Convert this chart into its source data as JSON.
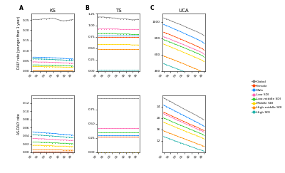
{
  "years": [
    1990,
    1992,
    1994,
    1996,
    1998,
    2000,
    2002,
    2004,
    2006,
    2008,
    2010,
    2012,
    2014,
    2016,
    2018,
    2019
  ],
  "colors": {
    "Global": "#808080",
    "Female": "#ff4500",
    "Male": "#1e90ff",
    "Low SDI": "#ff69b4",
    "Low-middle SDI": "#32cd32",
    "Middle SDI": "#ffd700",
    "High-middle SDI": "#ff8c00",
    "High SDI": "#20b2aa"
  },
  "legend_labels": [
    "Global",
    "Female",
    "Male",
    "Low SDI",
    "Low-middle SDI",
    "Middle SDI",
    "High-middle SDI",
    "High SDI"
  ],
  "panel_titles": [
    "KS",
    "TS",
    "UCA"
  ],
  "panel_labels": [
    "A",
    "B",
    "C"
  ],
  "KS_DALY": {
    "Global": [
      0.252,
      0.253,
      0.252,
      0.254,
      0.256,
      0.255,
      0.258,
      0.259,
      0.257,
      0.252,
      0.248,
      0.246,
      0.247,
      0.249,
      0.251,
      0.253
    ],
    "Male": [
      0.068,
      0.068,
      0.067,
      0.067,
      0.067,
      0.066,
      0.066,
      0.065,
      0.065,
      0.064,
      0.063,
      0.062,
      0.061,
      0.06,
      0.06,
      0.06
    ],
    "High SDI": [
      0.06,
      0.06,
      0.059,
      0.059,
      0.058,
      0.058,
      0.057,
      0.057,
      0.056,
      0.055,
      0.055,
      0.054,
      0.053,
      0.053,
      0.053,
      0.053
    ],
    "Low SDI": [
      0.045,
      0.045,
      0.044,
      0.044,
      0.044,
      0.044,
      0.043,
      0.043,
      0.042,
      0.042,
      0.041,
      0.04,
      0.04,
      0.039,
      0.038,
      0.038
    ],
    "Low-middle SDI": [
      0.03,
      0.03,
      0.03,
      0.029,
      0.029,
      0.029,
      0.029,
      0.028,
      0.028,
      0.027,
      0.027,
      0.027,
      0.026,
      0.026,
      0.025,
      0.025
    ],
    "Middle SDI": [
      0.022,
      0.022,
      0.022,
      0.022,
      0.021,
      0.021,
      0.021,
      0.021,
      0.02,
      0.02,
      0.02,
      0.019,
      0.019,
      0.019,
      0.019,
      0.019
    ],
    "High-middle SDI": [
      0.002,
      0.002,
      0.002,
      0.002,
      0.002,
      0.002,
      0.002,
      0.002,
      0.002,
      0.002,
      0.002,
      0.002,
      0.002,
      0.002,
      0.002,
      0.002
    ],
    "Female": [
      0.001,
      0.001,
      0.001,
      0.001,
      0.001,
      0.001,
      0.001,
      0.001,
      0.001,
      0.001,
      0.001,
      0.001,
      0.001,
      0.001,
      0.001,
      0.001
    ]
  },
  "KS_ASDALY": {
    "Global": [
      0.132,
      0.132,
      0.132,
      0.132,
      0.132,
      0.132,
      0.132,
      0.132,
      0.132,
      0.132,
      0.132,
      0.132,
      0.132,
      0.132,
      0.132,
      0.132
    ],
    "Male": [
      0.05,
      0.049,
      0.049,
      0.048,
      0.048,
      0.047,
      0.047,
      0.046,
      0.046,
      0.045,
      0.044,
      0.044,
      0.043,
      0.043,
      0.042,
      0.042
    ],
    "High SDI": [
      0.043,
      0.043,
      0.042,
      0.042,
      0.041,
      0.041,
      0.04,
      0.04,
      0.039,
      0.039,
      0.038,
      0.038,
      0.037,
      0.037,
      0.036,
      0.036
    ],
    "Low SDI": [
      0.034,
      0.034,
      0.033,
      0.033,
      0.033,
      0.032,
      0.032,
      0.032,
      0.031,
      0.031,
      0.03,
      0.03,
      0.03,
      0.029,
      0.029,
      0.029
    ],
    "Low-middle SDI": [
      0.025,
      0.025,
      0.025,
      0.024,
      0.024,
      0.024,
      0.024,
      0.023,
      0.023,
      0.023,
      0.022,
      0.022,
      0.022,
      0.021,
      0.021,
      0.021
    ],
    "Middle SDI": [
      0.017,
      0.017,
      0.017,
      0.017,
      0.016,
      0.016,
      0.016,
      0.016,
      0.015,
      0.015,
      0.015,
      0.015,
      0.015,
      0.014,
      0.014,
      0.014
    ],
    "High-middle SDI": [
      0.006,
      0.006,
      0.006,
      0.006,
      0.006,
      0.006,
      0.006,
      0.006,
      0.006,
      0.006,
      0.006,
      0.005,
      0.005,
      0.005,
      0.005,
      0.005
    ],
    "Female": [
      0.001,
      0.001,
      0.001,
      0.001,
      0.001,
      0.001,
      0.001,
      0.001,
      0.001,
      0.001,
      0.001,
      0.001,
      0.001,
      0.001,
      0.001,
      0.001
    ]
  },
  "TS_DALY": {
    "Global": [
      1.18,
      1.18,
      1.18,
      1.17,
      1.17,
      1.16,
      1.16,
      1.15,
      1.14,
      1.14,
      1.14,
      1.13,
      1.12,
      1.12,
      1.13,
      1.13
    ],
    "Low SDI": [
      0.92,
      0.92,
      0.92,
      0.92,
      0.92,
      0.92,
      0.92,
      0.92,
      0.91,
      0.91,
      0.91,
      0.91,
      0.91,
      0.91,
      0.91,
      0.91
    ],
    "Low-middle SDI": [
      0.82,
      0.82,
      0.82,
      0.82,
      0.82,
      0.82,
      0.82,
      0.81,
      0.81,
      0.81,
      0.81,
      0.81,
      0.8,
      0.8,
      0.8,
      0.8
    ],
    "Male": [
      0.78,
      0.78,
      0.78,
      0.78,
      0.78,
      0.78,
      0.78,
      0.78,
      0.78,
      0.78,
      0.78,
      0.78,
      0.78,
      0.78,
      0.78,
      0.78
    ],
    "Female": [
      0.75,
      0.75,
      0.75,
      0.75,
      0.75,
      0.75,
      0.75,
      0.75,
      0.75,
      0.75,
      0.75,
      0.75,
      0.75,
      0.75,
      0.75,
      0.75
    ],
    "Middle SDI": [
      0.58,
      0.58,
      0.58,
      0.58,
      0.58,
      0.58,
      0.58,
      0.58,
      0.58,
      0.58,
      0.58,
      0.58,
      0.57,
      0.57,
      0.57,
      0.57
    ],
    "High-middle SDI": [
      0.48,
      0.48,
      0.48,
      0.48,
      0.48,
      0.48,
      0.48,
      0.48,
      0.48,
      0.48,
      0.48,
      0.48,
      0.48,
      0.48,
      0.48,
      0.48
    ],
    "High SDI": [
      0.02,
      0.02,
      0.02,
      0.02,
      0.02,
      0.02,
      0.02,
      0.02,
      0.02,
      0.02,
      0.02,
      0.02,
      0.02,
      0.02,
      0.02,
      0.02
    ]
  },
  "TS_ASDALY": {
    "Global": [
      0.95,
      0.95,
      0.95,
      0.95,
      0.95,
      0.95,
      0.95,
      0.95,
      0.95,
      0.95,
      0.95,
      0.95,
      0.95,
      0.95,
      0.95,
      0.95
    ],
    "Low SDI": [
      0.42,
      0.42,
      0.42,
      0.42,
      0.42,
      0.42,
      0.42,
      0.42,
      0.42,
      0.42,
      0.42,
      0.42,
      0.42,
      0.42,
      0.42,
      0.42
    ],
    "Low-middle SDI": [
      0.35,
      0.35,
      0.35,
      0.35,
      0.35,
      0.35,
      0.35,
      0.35,
      0.35,
      0.35,
      0.35,
      0.35,
      0.35,
      0.35,
      0.35,
      0.35
    ],
    "Male": [
      0.3,
      0.3,
      0.3,
      0.3,
      0.3,
      0.3,
      0.3,
      0.3,
      0.3,
      0.3,
      0.3,
      0.3,
      0.3,
      0.3,
      0.3,
      0.3
    ],
    "Female": [
      0.27,
      0.27,
      0.27,
      0.27,
      0.27,
      0.27,
      0.27,
      0.27,
      0.27,
      0.27,
      0.27,
      0.27,
      0.27,
      0.27,
      0.27,
      0.27
    ],
    "Middle SDI": [
      0.001,
      0.001,
      0.001,
      0.001,
      0.001,
      0.001,
      0.001,
      0.001,
      0.001,
      0.001,
      0.001,
      0.001,
      0.001,
      0.001,
      0.001,
      0.001
    ],
    "High-middle SDI": [
      0.001,
      0.001,
      0.001,
      0.001,
      0.001,
      0.001,
      0.001,
      0.001,
      0.001,
      0.001,
      0.001,
      0.001,
      0.001,
      0.001,
      0.001,
      0.001
    ],
    "High SDI": [
      0.001,
      0.001,
      0.001,
      0.001,
      0.001,
      0.001,
      0.001,
      0.001,
      0.001,
      0.001,
      0.001,
      0.001,
      0.001,
      0.001,
      0.001,
      0.001
    ]
  },
  "UCA_DALY": {
    "Global": [
      1050,
      1038,
      1025,
      1010,
      996,
      982,
      970,
      955,
      940,
      925,
      910,
      896,
      882,
      865,
      848,
      835
    ],
    "Male": [
      970,
      957,
      943,
      928,
      913,
      899,
      884,
      868,
      853,
      837,
      822,
      807,
      792,
      774,
      757,
      742
    ],
    "Female": [
      875,
      863,
      850,
      836,
      821,
      808,
      794,
      779,
      764,
      749,
      735,
      720,
      705,
      689,
      673,
      658
    ],
    "Low SDI": [
      820,
      808,
      795,
      781,
      767,
      754,
      740,
      726,
      712,
      697,
      683,
      669,
      655,
      639,
      623,
      609
    ],
    "Low-middle SDI": [
      785,
      772,
      759,
      746,
      731,
      718,
      705,
      690,
      676,
      662,
      648,
      634,
      620,
      604,
      588,
      575
    ],
    "Middle SDI": [
      730,
      717,
      703,
      689,
      675,
      661,
      647,
      632,
      618,
      603,
      589,
      575,
      560,
      545,
      530,
      516
    ],
    "High-middle SDI": [
      585,
      572,
      559,
      546,
      533,
      519,
      506,
      492,
      478,
      463,
      449,
      435,
      421,
      405,
      390,
      377
    ],
    "High SDI": [
      490,
      477,
      464,
      451,
      438,
      425,
      412,
      399,
      385,
      372,
      358,
      344,
      331,
      317,
      303,
      293
    ]
  },
  "UCA_ASDALY": {
    "Global": [
      27.0,
      26.5,
      26.0,
      25.5,
      24.9,
      24.4,
      23.9,
      23.3,
      22.8,
      22.3,
      21.8,
      21.3,
      20.8,
      20.2,
      19.7,
      19.3
    ],
    "Male": [
      24.5,
      24.0,
      23.5,
      23.0,
      22.5,
      22.0,
      21.5,
      21.0,
      20.5,
      20.0,
      19.5,
      19.0,
      18.5,
      18.0,
      17.5,
      17.1
    ],
    "Female": [
      22.0,
      21.6,
      21.1,
      20.7,
      20.2,
      19.8,
      19.3,
      18.9,
      18.5,
      18.0,
      17.6,
      17.2,
      16.8,
      16.3,
      15.9,
      15.6
    ],
    "Low SDI": [
      21.5,
      21.0,
      20.6,
      20.1,
      19.7,
      19.2,
      18.8,
      18.3,
      17.9,
      17.5,
      17.1,
      16.6,
      16.2,
      15.8,
      15.4,
      15.1
    ],
    "Low-middle SDI": [
      20.0,
      19.6,
      19.2,
      18.7,
      18.3,
      17.9,
      17.5,
      17.1,
      16.7,
      16.3,
      15.9,
      15.5,
      15.1,
      14.7,
      14.3,
      14.0
    ],
    "Middle SDI": [
      18.5,
      18.1,
      17.7,
      17.3,
      16.9,
      16.5,
      16.1,
      15.7,
      15.3,
      14.9,
      14.5,
      14.2,
      13.8,
      13.4,
      13.0,
      12.8
    ],
    "High-middle SDI": [
      15.5,
      15.1,
      14.7,
      14.4,
      14.0,
      13.6,
      13.2,
      12.9,
      12.5,
      12.1,
      11.8,
      11.4,
      11.0,
      10.7,
      10.3,
      10.1
    ],
    "High SDI": [
      13.5,
      13.1,
      12.8,
      12.4,
      12.0,
      11.7,
      11.3,
      11.0,
      10.6,
      10.3,
      9.9,
      9.6,
      9.2,
      8.9,
      8.6,
      8.4
    ]
  },
  "tick_years": [
    1990,
    1995,
    2000,
    2005,
    2010,
    2015,
    2019
  ],
  "KS_DALY_ylim": [
    0.0,
    0.28
  ],
  "KS_DALY_yticks": [
    0.0,
    0.05,
    0.1,
    0.15,
    0.2,
    0.25
  ],
  "KS_ASDALY_ylim": [
    0.0,
    0.14
  ],
  "KS_ASDALY_yticks": [
    0.0,
    0.02,
    0.04,
    0.06,
    0.08,
    0.1,
    0.12
  ],
  "TS_DALY_ylim": [
    0.0,
    1.25
  ],
  "TS_DALY_yticks": [
    0.0,
    0.25,
    0.5,
    0.75,
    1.0,
    1.25
  ],
  "TS_ASDALY_ylim": [
    0.0,
    1.0
  ],
  "TS_ASDALY_yticks": [
    0.0,
    0.25,
    0.5,
    0.75
  ],
  "UCA_DALY_ylim": [
    400,
    1100
  ],
  "UCA_DALY_yticks": [
    400,
    600,
    800,
    1000
  ],
  "UCA_ASDALY_ylim": [
    8,
    28
  ],
  "UCA_ASDALY_yticks": [
    12,
    16,
    20,
    24
  ],
  "ylabel_row0": "DALY rate (younger than 1 year)",
  "ylabel_row1": "AS-DALY rate"
}
